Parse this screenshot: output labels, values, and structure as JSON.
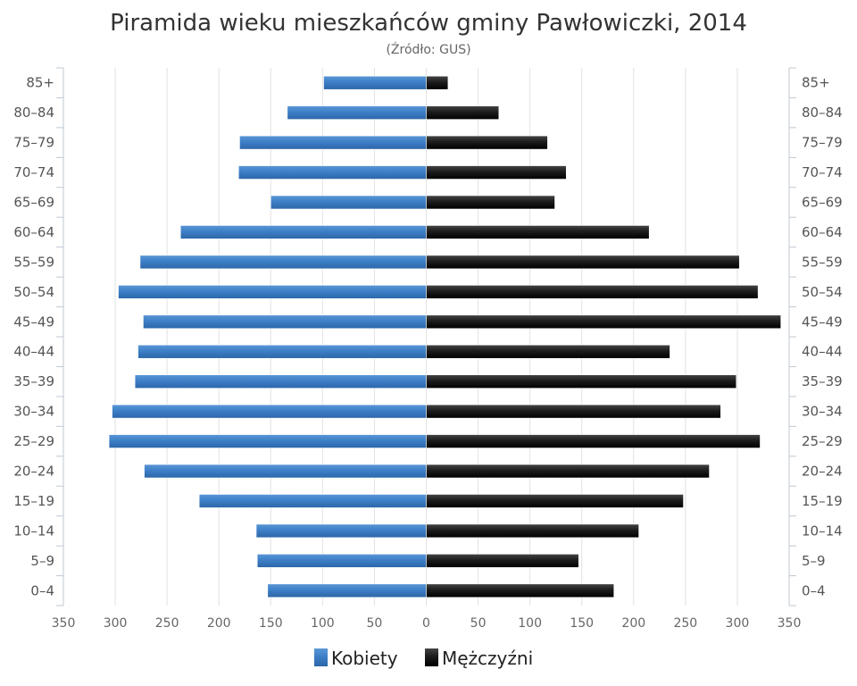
{
  "chart_data": {
    "type": "bar",
    "orientation": "horizontal",
    "layout": "population-pyramid",
    "title": "Piramida wieku mieszkańców gminy Pawłowiczki, 2014",
    "subtitle": "(Źródło: GUS)",
    "categories": [
      "0–4",
      "5–9",
      "10–14",
      "15–19",
      "20–24",
      "25–29",
      "30–34",
      "35–39",
      "40–44",
      "45–49",
      "50–54",
      "55–59",
      "60–64",
      "65–69",
      "70–74",
      "75–79",
      "80–84",
      "85+"
    ],
    "xlim": [
      -350,
      350
    ],
    "x_ticks": [
      -350,
      -300,
      -250,
      -200,
      -150,
      -100,
      -50,
      0,
      50,
      100,
      150,
      200,
      250,
      300,
      350
    ],
    "x_tick_labels": [
      "350",
      "300",
      "250",
      "200",
      "150",
      "100",
      "50",
      "0",
      "50",
      "100",
      "150",
      "200",
      "250",
      "300",
      "350"
    ],
    "grid": true,
    "legend": "bottom",
    "series": [
      {
        "name": "Kobiety",
        "color": "#3b7cc4",
        "side": "left",
        "values": [
          153,
          163,
          164,
          219,
          272,
          306,
          303,
          281,
          278,
          273,
          297,
          276,
          237,
          150,
          181,
          180,
          134,
          99
        ]
      },
      {
        "name": "Mężczyźni",
        "color": "#1f1f1f",
        "side": "right",
        "values": [
          181,
          147,
          205,
          248,
          273,
          322,
          284,
          299,
          235,
          342,
          320,
          302,
          215,
          124,
          135,
          117,
          70,
          21
        ]
      }
    ]
  }
}
